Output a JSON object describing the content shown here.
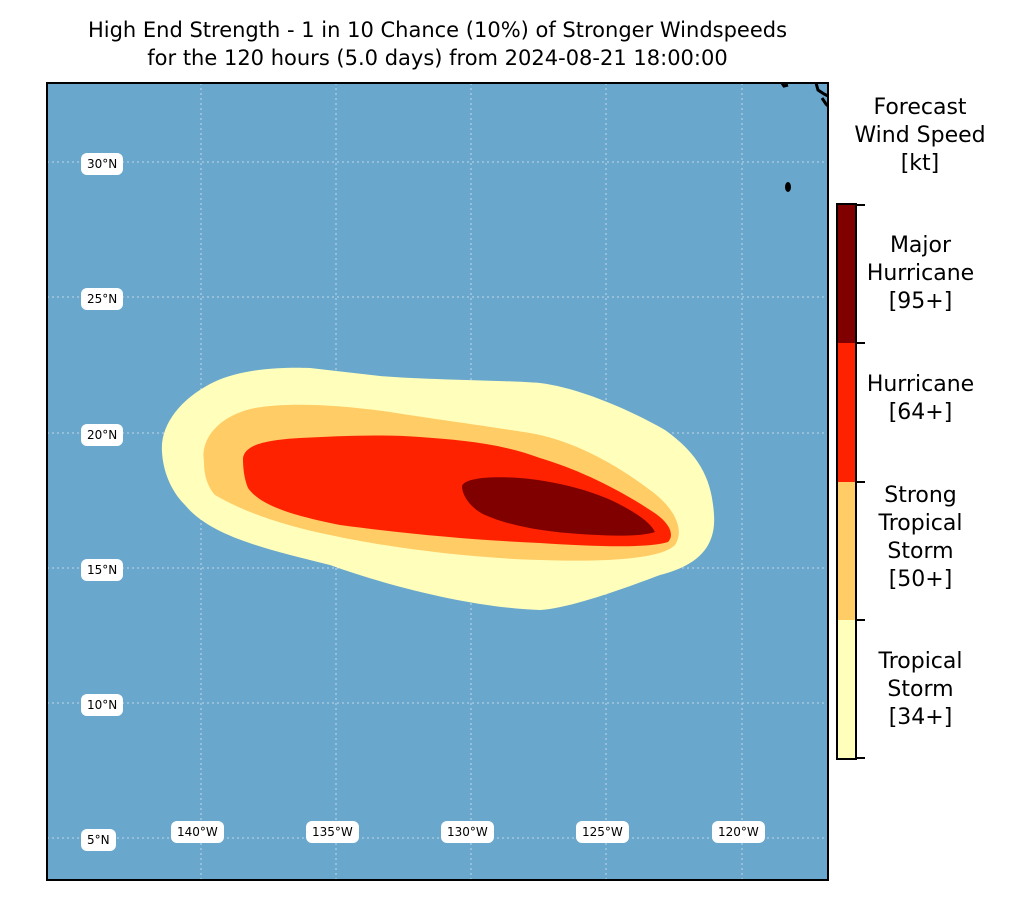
{
  "title": {
    "line1": "High End Strength - 1 in 10 Chance (10%) of Stronger Windspeeds",
    "line2": "for the 120 hours (5.0 days) from 2024-08-21 18:00:00"
  },
  "colorbar": {
    "title_lines": [
      "Forecast",
      "Wind Speed",
      "[kt]"
    ],
    "categories": [
      {
        "lines": [
          "Major",
          "Hurricane",
          "[95+]"
        ],
        "color": "#800000"
      },
      {
        "lines": [
          "Hurricane",
          "[64+]"
        ],
        "color": "#ff2200"
      },
      {
        "lines": [
          "Strong",
          "Tropical",
          "Storm",
          "[50+]"
        ],
        "color": "#ffcc66"
      },
      {
        "lines": [
          "Tropical",
          "Storm",
          "[34+]"
        ],
        "color": "#ffffbb"
      }
    ]
  },
  "map": {
    "ocean_color": "#6aa7cc",
    "lat_labels": [
      "30°N",
      "25°N",
      "20°N",
      "15°N",
      "10°N",
      "5°N"
    ],
    "lon_labels": [
      "140°W",
      "135°W",
      "130°W",
      "125°W",
      "120°W"
    ]
  }
}
